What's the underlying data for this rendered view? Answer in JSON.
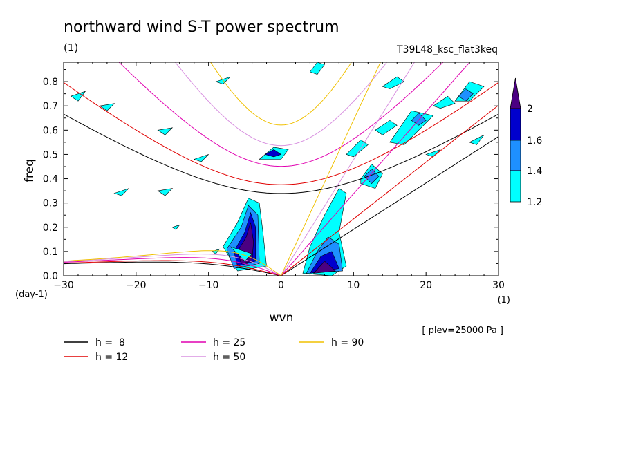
{
  "chart_data": {
    "type": "heatmap",
    "title": "northward wind S-T power spectrum",
    "subtitle_left": "(1)",
    "subtitle_right": "T39L48_ksc_flat3keq",
    "xlabel": "wvn",
    "ylabel": "freq",
    "x_unit": "(1)",
    "y_unit": "(day-1)",
    "xlim": [
      -30,
      30
    ],
    "ylim": [
      0,
      0.88
    ],
    "xticks": [
      -30,
      -20,
      -10,
      0,
      10,
      20,
      30
    ],
    "yticks": [
      0.0,
      0.1,
      0.2,
      0.3,
      0.4,
      0.5,
      0.6,
      0.7,
      0.8
    ],
    "ytick_labels": [
      "0.0",
      "0.1",
      "0.2",
      "0.3",
      "0.4",
      "0.5",
      "0.6",
      "0.7",
      "0.8"
    ],
    "note": "[ plev=25000 Pa ]",
    "colorbar": {
      "levels": [
        1.2,
        1.4,
        1.6,
        2
      ],
      "colors": [
        "#00ffff",
        "#1e90ff",
        "#0000cd",
        "#4b0082"
      ]
    },
    "dispersion_curves": [
      {
        "label": "h =  8",
        "h": 8,
        "color": "#000000"
      },
      {
        "label": "h = 12",
        "h": 12,
        "color": "#e00000"
      },
      {
        "label": "h = 25",
        "h": 25,
        "color": "#e000b0"
      },
      {
        "label": "h = 50",
        "h": 50,
        "color": "#d890e0"
      },
      {
        "label": "h = 90",
        "h": 90,
        "color": "#f0c000"
      }
    ],
    "contour_regions": [
      {
        "level": 1.2,
        "points": [
          [
            -6,
            0.02
          ],
          [
            -8,
            0.12
          ],
          [
            -6,
            0.22
          ],
          [
            -4.5,
            0.32
          ],
          [
            -3,
            0.3
          ],
          [
            -2.5,
            0.18
          ],
          [
            -2,
            0.04
          ]
        ]
      },
      {
        "level": 1.4,
        "points": [
          [
            -6.5,
            0.03
          ],
          [
            -7.5,
            0.11
          ],
          [
            -5.5,
            0.2
          ],
          [
            -4.5,
            0.29
          ],
          [
            -3.2,
            0.25
          ],
          [
            -3,
            0.05
          ]
        ]
      },
      {
        "level": 1.6,
        "points": [
          [
            -6,
            0.04
          ],
          [
            -6.5,
            0.1
          ],
          [
            -5,
            0.18
          ],
          [
            -4.2,
            0.26
          ],
          [
            -3.5,
            0.2
          ],
          [
            -3.5,
            0.06
          ]
        ]
      },
      {
        "level": 2,
        "points": [
          [
            -5.5,
            0.05
          ],
          [
            -6,
            0.1
          ],
          [
            -4.8,
            0.16
          ],
          [
            -4.2,
            0.22
          ],
          [
            -3.8,
            0.14
          ],
          [
            -4,
            0.06
          ]
        ]
      },
      {
        "level": 1.2,
        "points": [
          [
            3,
            0.01
          ],
          [
            4,
            0.12
          ],
          [
            6,
            0.25
          ],
          [
            8,
            0.36
          ],
          [
            9,
            0.34
          ],
          [
            8,
            0.18
          ],
          [
            9,
            0.04
          ],
          [
            7,
            0.0
          ]
        ]
      },
      {
        "level": 1.4,
        "points": [
          [
            3.5,
            0.01
          ],
          [
            5,
            0.1
          ],
          [
            6.5,
            0.16
          ],
          [
            8,
            0.13
          ],
          [
            8.5,
            0.02
          ]
        ]
      },
      {
        "level": 1.6,
        "points": [
          [
            4,
            0.01
          ],
          [
            5.5,
            0.08
          ],
          [
            7,
            0.1
          ],
          [
            8,
            0.03
          ]
        ]
      },
      {
        "level": 2,
        "points": [
          [
            4.5,
            0.01
          ],
          [
            6,
            0.06
          ],
          [
            7.5,
            0.02
          ]
        ]
      },
      {
        "level": 1.2,
        "points": [
          [
            11,
            0.4
          ],
          [
            12.5,
            0.46
          ],
          [
            14,
            0.42
          ],
          [
            13,
            0.36
          ],
          [
            11,
            0.38
          ]
        ]
      },
      {
        "level": 1.4,
        "points": [
          [
            11.5,
            0.41
          ],
          [
            12.5,
            0.44
          ],
          [
            13.5,
            0.41
          ],
          [
            12.5,
            0.38
          ]
        ]
      },
      {
        "level": 1.2,
        "points": [
          [
            -3,
            0.48
          ],
          [
            -1,
            0.53
          ],
          [
            1,
            0.52
          ],
          [
            0,
            0.48
          ]
        ]
      },
      {
        "level": 1.6,
        "points": [
          [
            -2.2,
            0.5
          ],
          [
            -1,
            0.52
          ],
          [
            0,
            0.5
          ],
          [
            -1,
            0.49
          ]
        ]
      },
      {
        "level": 1.2,
        "points": [
          [
            15,
            0.55
          ],
          [
            18,
            0.68
          ],
          [
            21,
            0.66
          ],
          [
            19,
            0.6
          ],
          [
            17,
            0.54
          ]
        ]
      },
      {
        "level": 1.4,
        "points": [
          [
            18,
            0.64
          ],
          [
            19,
            0.67
          ],
          [
            20,
            0.64
          ],
          [
            19,
            0.62
          ]
        ]
      },
      {
        "level": 1.2,
        "points": [
          [
            24,
            0.72
          ],
          [
            26,
            0.8
          ],
          [
            28,
            0.78
          ],
          [
            26,
            0.72
          ]
        ]
      },
      {
        "level": 1.4,
        "points": [
          [
            24.5,
            0.74
          ],
          [
            25.5,
            0.77
          ],
          [
            26.5,
            0.75
          ],
          [
            25.5,
            0.72
          ]
        ]
      },
      {
        "level": 1.2,
        "points": [
          [
            4,
            0.84
          ],
          [
            5,
            0.88
          ],
          [
            6,
            0.87
          ],
          [
            5,
            0.83
          ]
        ]
      },
      {
        "level": 1.2,
        "points": [
          [
            -29,
            0.74
          ],
          [
            -27,
            0.76
          ],
          [
            -28,
            0.72
          ]
        ]
      },
      {
        "level": 1.2,
        "points": [
          [
            -25,
            0.7
          ],
          [
            -23,
            0.71
          ],
          [
            -24,
            0.68
          ]
        ]
      },
      {
        "level": 1.2,
        "points": [
          [
            -23,
            0.34
          ],
          [
            -21,
            0.36
          ],
          [
            -22,
            0.33
          ]
        ]
      },
      {
        "level": 1.2,
        "points": [
          [
            -17,
            0.35
          ],
          [
            -15,
            0.36
          ],
          [
            -16,
            0.33
          ]
        ]
      },
      {
        "level": 1.2,
        "points": [
          [
            -17,
            0.6
          ],
          [
            -15,
            0.61
          ],
          [
            -16,
            0.58
          ]
        ]
      },
      {
        "level": 1.2,
        "points": [
          [
            -9,
            0.8
          ],
          [
            -7,
            0.82
          ],
          [
            -8,
            0.79
          ]
        ]
      },
      {
        "level": 1.2,
        "points": [
          [
            -12,
            0.48
          ],
          [
            -10,
            0.5
          ],
          [
            -11,
            0.47
          ]
        ]
      },
      {
        "level": 1.2,
        "points": [
          [
            9,
            0.5
          ],
          [
            11,
            0.56
          ],
          [
            12,
            0.54
          ],
          [
            10,
            0.49
          ]
        ]
      },
      {
        "level": 1.2,
        "points": [
          [
            13,
            0.6
          ],
          [
            15,
            0.64
          ],
          [
            16,
            0.62
          ],
          [
            14,
            0.58
          ]
        ]
      },
      {
        "level": 1.2,
        "points": [
          [
            21,
            0.7
          ],
          [
            23,
            0.74
          ],
          [
            24,
            0.71
          ],
          [
            22,
            0.69
          ]
        ]
      },
      {
        "level": 1.2,
        "points": [
          [
            20,
            0.5
          ],
          [
            22,
            0.52
          ],
          [
            21,
            0.49
          ]
        ]
      },
      {
        "level": 1.2,
        "points": [
          [
            26,
            0.55
          ],
          [
            28,
            0.58
          ],
          [
            27,
            0.54
          ]
        ]
      },
      {
        "level": 1.2,
        "points": [
          [
            14,
            0.78
          ],
          [
            16,
            0.82
          ],
          [
            17,
            0.8
          ],
          [
            15,
            0.77
          ]
        ]
      },
      {
        "level": 1.2,
        "points": [
          [
            -7,
            0.12
          ],
          [
            -4,
            0.09
          ],
          [
            -5,
            0.06
          ]
        ]
      },
      {
        "level": 1.2,
        "points": [
          [
            -9.5,
            0.1
          ],
          [
            -8.5,
            0.11
          ],
          [
            -9,
            0.09
          ]
        ]
      },
      {
        "level": 1.2,
        "points": [
          [
            -15,
            0.2
          ],
          [
            -14,
            0.21
          ],
          [
            -14.5,
            0.19
          ]
        ]
      }
    ]
  }
}
